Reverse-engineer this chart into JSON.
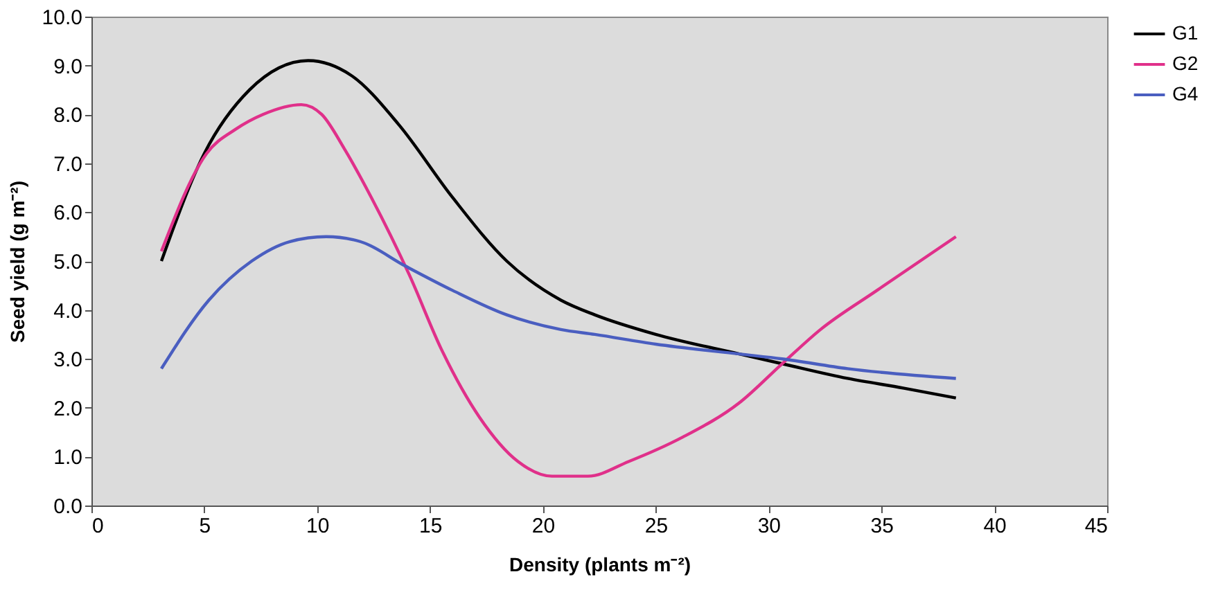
{
  "chart_data": {
    "type": "line",
    "xlabel": "Density (plants m⁻²)",
    "ylabel": "Seed yield (g m⁻²)",
    "xlim": [
      0,
      45
    ],
    "xticks": [
      0,
      5,
      10,
      15,
      20,
      25,
      30,
      35,
      40,
      45
    ],
    "ylim": [
      0,
      10
    ],
    "yticks": [
      {
        "value": 0,
        "label": "0.0"
      },
      {
        "value": 1,
        "label": "1.0"
      },
      {
        "value": 2,
        "label": "2.0"
      },
      {
        "value": 3,
        "label": "3.0"
      },
      {
        "value": 4,
        "label": "4.0"
      },
      {
        "value": 5,
        "label": "5.0"
      },
      {
        "value": 6,
        "label": "6.0"
      },
      {
        "value": 7,
        "label": "7.0"
      },
      {
        "value": 8,
        "label": "8.0"
      },
      {
        "value": 9,
        "label": "9.0"
      },
      {
        "value": 10,
        "label": "10.0"
      }
    ],
    "grid": false,
    "legend": "right",
    "marker": "none",
    "line_style": "solid",
    "series": [
      {
        "name": "G1",
        "color": "#000000",
        "x": [
          3.1,
          5.0,
          7.0,
          9.6,
          11.5,
          13.6,
          16.0,
          18.4,
          20.8,
          22.3,
          25.0,
          28.7,
          30.6,
          33.5,
          36.0,
          38.3
        ],
        "values": [
          5.0,
          7.2,
          8.5,
          9.1,
          8.8,
          7.8,
          6.3,
          5.0,
          4.2,
          3.9,
          3.5,
          3.1,
          2.9,
          2.6,
          2.4,
          2.2
        ]
      },
      {
        "name": "G2",
        "color": "#e0308a",
        "x": [
          3.1,
          5.1,
          6.4,
          7.6,
          9.3,
          10.2,
          11.2,
          12.4,
          14.1,
          15.5,
          17.2,
          18.9,
          20.4,
          22.0,
          23.8,
          26.2,
          28.7,
          30.6,
          32.3,
          34.8,
          38.3
        ],
        "values": [
          5.2,
          7.2,
          7.7,
          8.0,
          8.2,
          8.0,
          7.3,
          6.3,
          4.7,
          3.2,
          1.8,
          0.9,
          0.6,
          0.6,
          0.9,
          1.4,
          2.1,
          2.9,
          3.6,
          4.4,
          5.5
        ]
      },
      {
        "name": "G4",
        "color": "#4a5ec0",
        "x": [
          3.1,
          5.2,
          7.1,
          8.8,
          10.4,
          11.9,
          13.9,
          16.0,
          18.4,
          20.8,
          22.3,
          25.0,
          28.7,
          30.6,
          33.5,
          38.3
        ],
        "values": [
          2.8,
          4.2,
          5.0,
          5.4,
          5.5,
          5.4,
          4.9,
          4.4,
          3.9,
          3.6,
          3.5,
          3.3,
          3.1,
          3.0,
          2.8,
          2.6
        ]
      }
    ]
  }
}
